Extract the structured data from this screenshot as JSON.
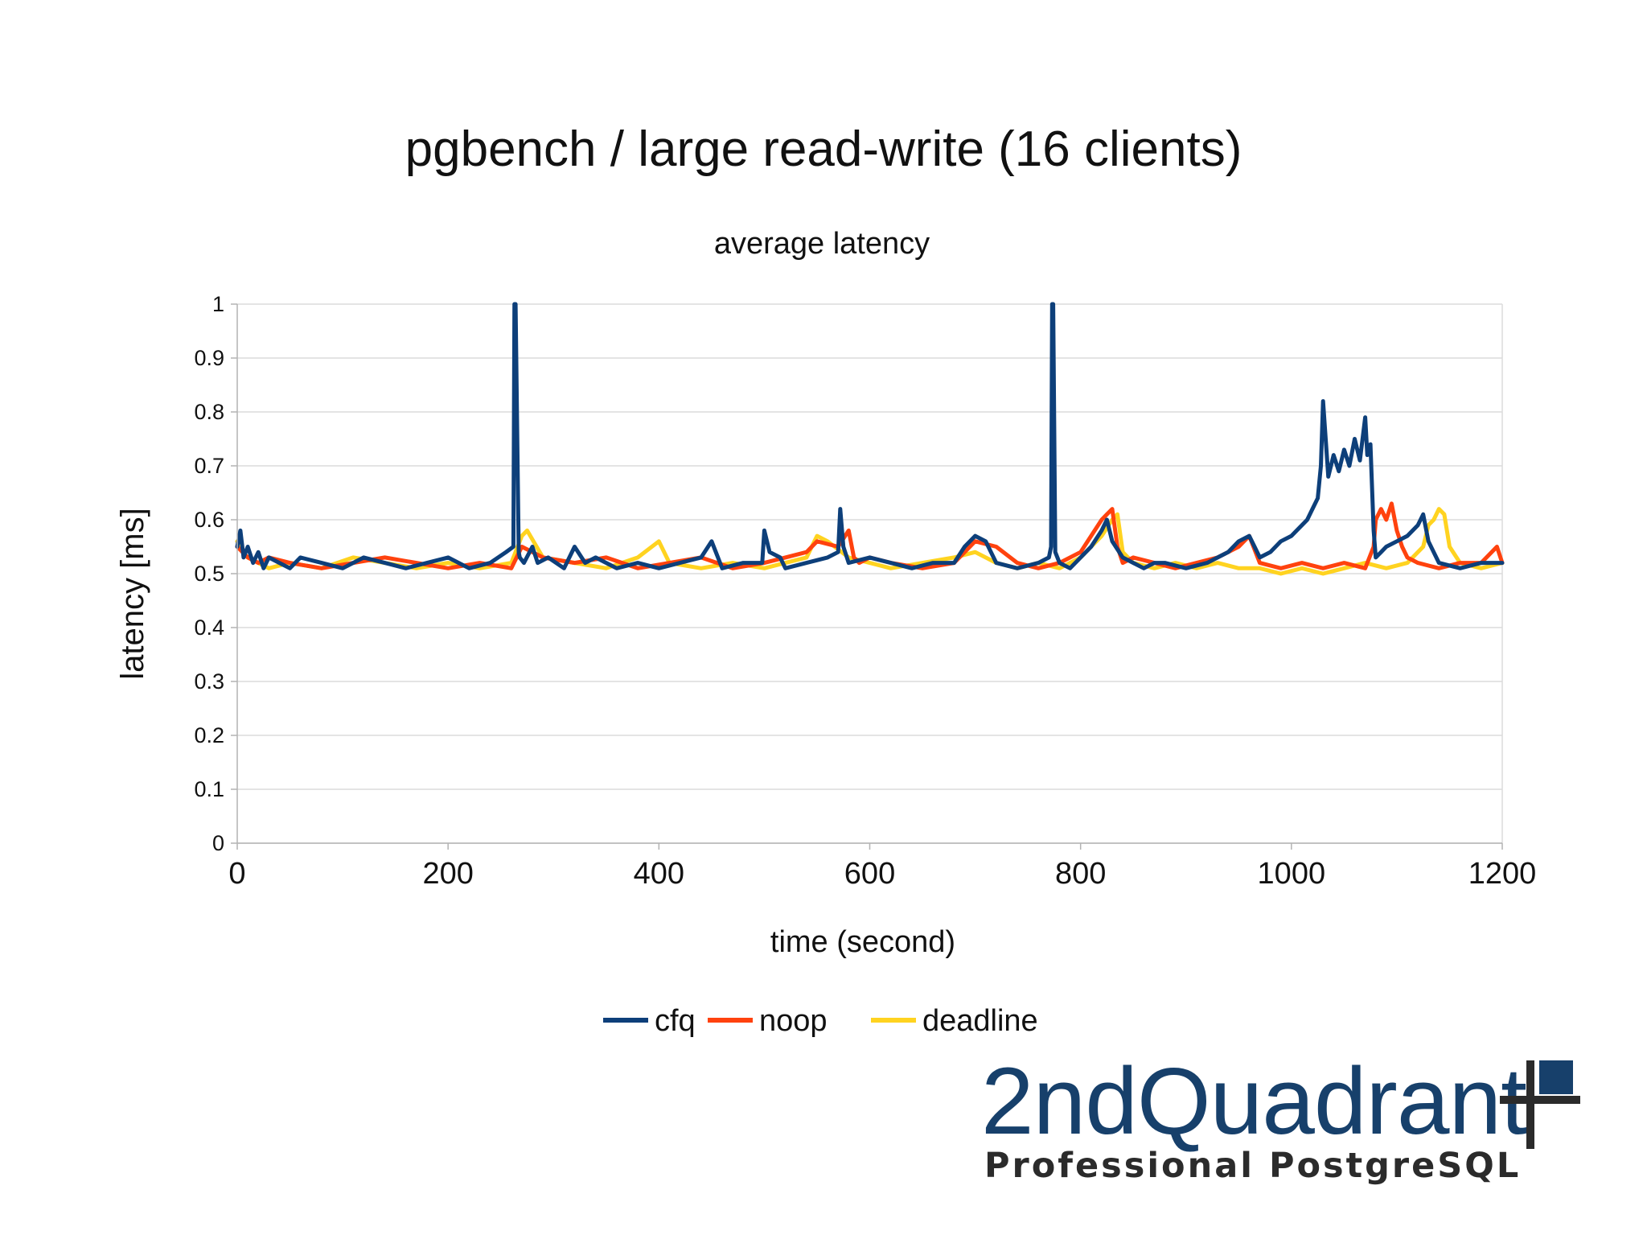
{
  "title": "pgbench / large read-write (16 clients)",
  "logo": {
    "main": "2ndQuadrant",
    "sub": "Professional PostgreSQL",
    "color": "#17406b"
  },
  "chart_data": {
    "type": "line",
    "title": "pgbench / large read-write (16 clients)",
    "subtitle": "average latency",
    "xlabel": "time (second)",
    "ylabel": "latency [ms]",
    "xlim": [
      0,
      1200
    ],
    "ylim": [
      0,
      1
    ],
    "x_ticks": [
      0,
      200,
      400,
      600,
      800,
      1000,
      1200
    ],
    "y_ticks": [
      0,
      0.1,
      0.2,
      0.3,
      0.4,
      0.5,
      0.6,
      0.7,
      0.8,
      0.9,
      1
    ],
    "x_tick_labels": [
      "0",
      "200",
      "400",
      "600",
      "800",
      "1000",
      "1200"
    ],
    "y_tick_labels": [
      "0",
      "0.1",
      "0.2",
      "0.3",
      "0.4",
      "0.5",
      "0.6",
      "0.7",
      "0.8",
      "0.9",
      "1"
    ],
    "grid": true,
    "legend_position": "bottom",
    "series": [
      {
        "name": "cfq",
        "color": "#0d3f7a",
        "x": [
          0,
          3,
          6,
          10,
          15,
          20,
          25,
          30,
          40,
          50,
          60,
          80,
          100,
          120,
          140,
          160,
          180,
          200,
          220,
          240,
          255,
          262,
          263,
          264,
          267,
          268,
          272,
          280,
          285,
          295,
          310,
          320,
          330,
          340,
          350,
          360,
          380,
          400,
          420,
          440,
          450,
          460,
          480,
          498,
          500,
          505,
          515,
          520,
          540,
          560,
          570,
          572,
          575,
          580,
          600,
          620,
          640,
          660,
          680,
          690,
          700,
          710,
          720,
          740,
          760,
          770,
          772,
          773,
          774,
          776,
          780,
          790,
          800,
          810,
          820,
          825,
          830,
          840,
          850,
          860,
          870,
          880,
          900,
          920,
          930,
          940,
          950,
          960,
          965,
          970,
          980,
          990,
          1000,
          1005,
          1010,
          1015,
          1020,
          1025,
          1028,
          1030,
          1035,
          1040,
          1045,
          1050,
          1055,
          1060,
          1065,
          1070,
          1072,
          1075,
          1078,
          1080,
          1085,
          1090,
          1100,
          1110,
          1120,
          1125,
          1130,
          1140,
          1160,
          1180,
          1200
        ],
        "values": [
          0.55,
          0.58,
          0.53,
          0.55,
          0.52,
          0.54,
          0.51,
          0.53,
          0.52,
          0.51,
          0.53,
          0.52,
          0.51,
          0.53,
          0.52,
          0.51,
          0.52,
          0.53,
          0.51,
          0.52,
          0.54,
          0.55,
          1.0,
          1.0,
          0.54,
          0.53,
          0.52,
          0.55,
          0.52,
          0.53,
          0.51,
          0.55,
          0.52,
          0.53,
          0.52,
          0.51,
          0.52,
          0.51,
          0.52,
          0.53,
          0.56,
          0.51,
          0.52,
          0.52,
          0.58,
          0.54,
          0.53,
          0.51,
          0.52,
          0.53,
          0.54,
          0.62,
          0.55,
          0.52,
          0.53,
          0.52,
          0.51,
          0.52,
          0.52,
          0.55,
          0.57,
          0.56,
          0.52,
          0.51,
          0.52,
          0.53,
          0.55,
          1.0,
          1.0,
          0.54,
          0.52,
          0.51,
          0.53,
          0.55,
          0.58,
          0.6,
          0.56,
          0.53,
          0.52,
          0.51,
          0.52,
          0.52,
          0.51,
          0.52,
          0.53,
          0.54,
          0.56,
          0.57,
          0.55,
          0.53,
          0.54,
          0.56,
          0.57,
          0.58,
          0.59,
          0.6,
          0.62,
          0.64,
          0.7,
          0.82,
          0.68,
          0.72,
          0.69,
          0.73,
          0.7,
          0.75,
          0.71,
          0.79,
          0.72,
          0.74,
          0.58,
          0.53,
          0.54,
          0.55,
          0.56,
          0.57,
          0.59,
          0.61,
          0.56,
          0.52,
          0.51,
          0.52,
          0.52
        ]
      },
      {
        "name": "noop",
        "color": "#ff420e",
        "x": [
          0,
          5,
          10,
          20,
          30,
          50,
          80,
          110,
          140,
          170,
          200,
          230,
          260,
          270,
          290,
          320,
          350,
          380,
          410,
          440,
          470,
          500,
          520,
          540,
          550,
          570,
          580,
          585,
          590,
          600,
          620,
          650,
          680,
          700,
          720,
          740,
          760,
          780,
          800,
          810,
          820,
          825,
          830,
          835,
          840,
          850,
          870,
          890,
          910,
          930,
          950,
          960,
          970,
          990,
          1010,
          1030,
          1050,
          1070,
          1078,
          1080,
          1085,
          1090,
          1095,
          1100,
          1105,
          1110,
          1120,
          1140,
          1160,
          1180,
          1195,
          1200
        ],
        "values": [
          0.55,
          0.54,
          0.53,
          0.52,
          0.53,
          0.52,
          0.51,
          0.52,
          0.53,
          0.52,
          0.51,
          0.52,
          0.51,
          0.55,
          0.53,
          0.52,
          0.53,
          0.51,
          0.52,
          0.53,
          0.51,
          0.52,
          0.53,
          0.54,
          0.56,
          0.55,
          0.58,
          0.53,
          0.52,
          0.53,
          0.52,
          0.51,
          0.52,
          0.56,
          0.55,
          0.52,
          0.51,
          0.52,
          0.54,
          0.57,
          0.6,
          0.61,
          0.62,
          0.55,
          0.52,
          0.53,
          0.52,
          0.51,
          0.52,
          0.53,
          0.55,
          0.57,
          0.52,
          0.51,
          0.52,
          0.51,
          0.52,
          0.51,
          0.55,
          0.6,
          0.62,
          0.6,
          0.63,
          0.58,
          0.55,
          0.53,
          0.52,
          0.51,
          0.52,
          0.52,
          0.55,
          0.52
        ]
      },
      {
        "name": "deadline",
        "color": "#ffd320",
        "x": [
          0,
          5,
          10,
          20,
          30,
          50,
          80,
          110,
          140,
          170,
          200,
          230,
          260,
          270,
          275,
          290,
          320,
          350,
          380,
          400,
          410,
          440,
          470,
          500,
          520,
          540,
          545,
          550,
          560,
          580,
          600,
          620,
          650,
          680,
          700,
          720,
          740,
          760,
          780,
          800,
          820,
          830,
          835,
          840,
          850,
          870,
          890,
          910,
          930,
          950,
          970,
          990,
          1010,
          1030,
          1050,
          1070,
          1090,
          1110,
          1125,
          1130,
          1135,
          1140,
          1145,
          1150,
          1160,
          1180,
          1200
        ],
        "values": [
          0.56,
          0.54,
          0.53,
          0.52,
          0.51,
          0.52,
          0.51,
          0.53,
          0.52,
          0.51,
          0.52,
          0.51,
          0.52,
          0.57,
          0.58,
          0.53,
          0.52,
          0.51,
          0.53,
          0.56,
          0.52,
          0.51,
          0.52,
          0.51,
          0.52,
          0.53,
          0.55,
          0.57,
          0.56,
          0.53,
          0.52,
          0.51,
          0.52,
          0.53,
          0.54,
          0.52,
          0.51,
          0.52,
          0.51,
          0.53,
          0.57,
          0.6,
          0.61,
          0.54,
          0.52,
          0.51,
          0.52,
          0.51,
          0.52,
          0.51,
          0.51,
          0.5,
          0.51,
          0.5,
          0.51,
          0.52,
          0.51,
          0.52,
          0.55,
          0.59,
          0.6,
          0.62,
          0.61,
          0.55,
          0.52,
          0.51,
          0.52
        ]
      }
    ]
  }
}
